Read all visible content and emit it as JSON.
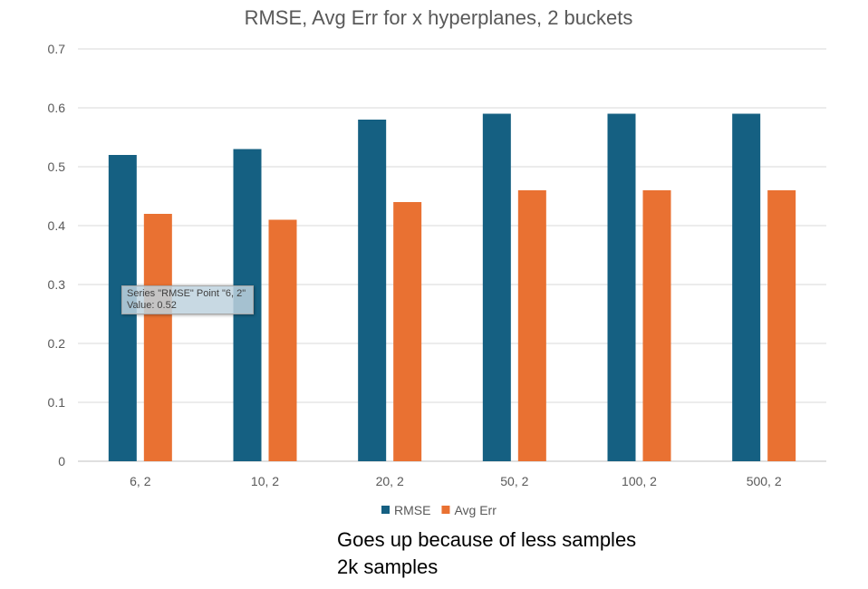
{
  "chart_data": {
    "type": "bar",
    "title": "RMSE, Avg Err for x hyperplanes, 2 buckets",
    "categories": [
      "6, 2",
      "10, 2",
      "20, 2",
      "50, 2",
      "100, 2",
      "500, 2"
    ],
    "series": [
      {
        "name": "RMSE",
        "color": "#156082",
        "values": [
          0.52,
          0.53,
          0.58,
          0.59,
          0.59,
          0.59
        ]
      },
      {
        "name": "Avg Err",
        "color": "#e97132",
        "values": [
          0.42,
          0.41,
          0.44,
          0.46,
          0.46,
          0.46
        ]
      }
    ],
    "ylim": [
      0,
      0.7
    ],
    "yticks": [
      "0",
      "0.1",
      "0.2",
      "0.3",
      "0.4",
      "0.5",
      "0.6",
      "0.7"
    ],
    "grid": true,
    "legend_position": "bottom",
    "xlabel": "",
    "ylabel": ""
  },
  "annotation": {
    "line1": "Goes up because of less samples",
    "line2": "2k samples"
  },
  "tooltip": {
    "line1": "Series \"RMSE\" Point \"6, 2\"",
    "line2": "Value: 0.52"
  }
}
